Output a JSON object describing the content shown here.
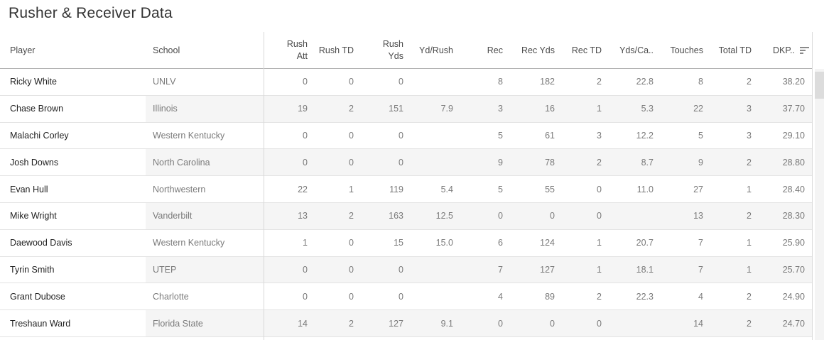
{
  "title": "Rusher & Receiver Data",
  "colors": {
    "title_text": "#333333",
    "header_text": "#4a4a4a",
    "body_text": "#7a7a7a",
    "player_text": "#1f1f1f",
    "row_band": "#f5f5f5",
    "header_border": "#b4b4b4",
    "row_border": "#e3e3e3",
    "divider": "#d9d9d9",
    "scroll_thumb": "#dcdcdc"
  },
  "table": {
    "columns": [
      "Player",
      "School",
      "Rush\nAtt",
      "Rush TD",
      "Rush\nYds",
      "Yd/Rush",
      "Rec",
      "Rec Yds",
      "Rec TD",
      "Yds/Ca..",
      "Touches",
      "Total TD",
      "DKP.."
    ],
    "column_keys": [
      "player",
      "school",
      "rush-att",
      "rush-td",
      "rush-yds",
      "yd-per-rush",
      "rec",
      "rec-yds",
      "rec-td",
      "yds-per-catch",
      "touches",
      "total-td",
      "dkp"
    ],
    "sort_icon": "sort-descending-icon",
    "rows": [
      {
        "player": "Ricky White",
        "school": "UNLV",
        "values": [
          "0",
          "0",
          "0",
          "",
          "8",
          "182",
          "2",
          "22.8",
          "8",
          "2",
          "38.20"
        ]
      },
      {
        "player": "Chase Brown",
        "school": "Illinois",
        "values": [
          "19",
          "2",
          "151",
          "7.9",
          "3",
          "16",
          "1",
          "5.3",
          "22",
          "3",
          "37.70"
        ]
      },
      {
        "player": "Malachi Corley",
        "school": "Western Kentucky",
        "values": [
          "0",
          "0",
          "0",
          "",
          "5",
          "61",
          "3",
          "12.2",
          "5",
          "3",
          "29.10"
        ]
      },
      {
        "player": "Josh Downs",
        "school": "North Carolina",
        "values": [
          "0",
          "0",
          "0",
          "",
          "9",
          "78",
          "2",
          "8.7",
          "9",
          "2",
          "28.80"
        ]
      },
      {
        "player": "Evan Hull",
        "school": "Northwestern",
        "values": [
          "22",
          "1",
          "119",
          "5.4",
          "5",
          "55",
          "0",
          "11.0",
          "27",
          "1",
          "28.40"
        ]
      },
      {
        "player": "Mike Wright",
        "school": "Vanderbilt",
        "values": [
          "13",
          "2",
          "163",
          "12.5",
          "0",
          "0",
          "0",
          "",
          "13",
          "2",
          "28.30"
        ]
      },
      {
        "player": "Daewood Davis",
        "school": "Western Kentucky",
        "values": [
          "1",
          "0",
          "15",
          "15.0",
          "6",
          "124",
          "1",
          "20.7",
          "7",
          "1",
          "25.90"
        ]
      },
      {
        "player": "Tyrin Smith",
        "school": "UTEP",
        "values": [
          "0",
          "0",
          "0",
          "",
          "7",
          "127",
          "1",
          "18.1",
          "7",
          "1",
          "25.70"
        ]
      },
      {
        "player": "Grant Dubose",
        "school": "Charlotte",
        "values": [
          "0",
          "0",
          "0",
          "",
          "4",
          "89",
          "2",
          "22.3",
          "4",
          "2",
          "24.90"
        ]
      },
      {
        "player": "Treshaun Ward",
        "school": "Florida State",
        "values": [
          "14",
          "2",
          "127",
          "9.1",
          "0",
          "0",
          "0",
          "",
          "14",
          "2",
          "24.70"
        ]
      }
    ]
  }
}
